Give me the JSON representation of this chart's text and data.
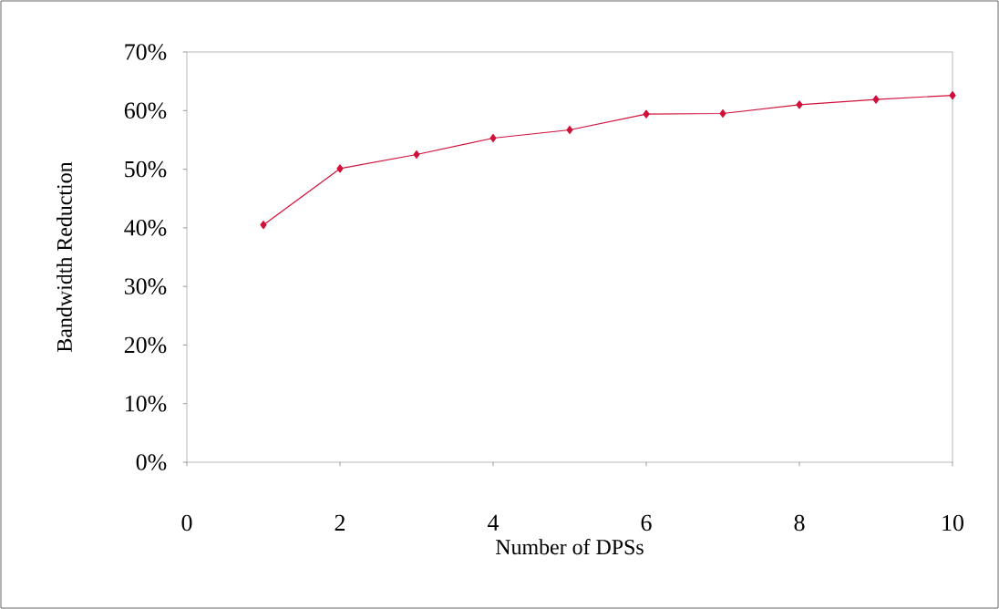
{
  "chart_data": {
    "type": "line",
    "xlabel": "Number of DPSs",
    "ylabel": "Bandwidth Reduction",
    "x": [
      1,
      2,
      3,
      4,
      5,
      6,
      7,
      8,
      9,
      10
    ],
    "series": [
      {
        "color": "#d0103a",
        "values": [
          40.5,
          50.1,
          52.5,
          55.3,
          56.7,
          59.4,
          59.5,
          61.0,
          61.9,
          62.6
        ]
      }
    ],
    "xlim": [
      0,
      10
    ],
    "xticks": [
      0,
      2,
      4,
      6,
      8,
      10
    ],
    "ylim": [
      0,
      70
    ],
    "yticks": [
      {
        "value": 0,
        "label": "0%"
      },
      {
        "value": 10,
        "label": "10%"
      },
      {
        "value": 20,
        "label": "20%"
      },
      {
        "value": 30,
        "label": "30%"
      },
      {
        "value": 40,
        "label": "40%"
      },
      {
        "value": 50,
        "label": "50%"
      },
      {
        "value": 60,
        "label": "60%"
      },
      {
        "value": 70,
        "label": "70%"
      }
    ],
    "marker": "diamond",
    "line_style": "solid"
  }
}
